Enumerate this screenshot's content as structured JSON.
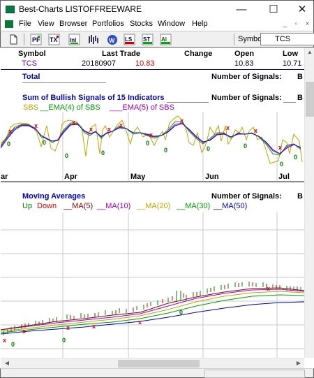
{
  "window": {
    "title": "Best-Charts  LISTOFFREEWARE",
    "minimize": "—",
    "maximize": "☐",
    "close": "✕"
  },
  "menu": {
    "items": [
      "File",
      "View",
      "Browser",
      "Portfolios",
      "Stocks",
      "Window",
      "Help"
    ]
  },
  "toolbar": {
    "symbol_label": "Symbol",
    "symbol_value": "TCS"
  },
  "quote": {
    "headers": {
      "symbol": "Symbol",
      "last_trade": "Last Trade",
      "change": "Change",
      "open": "Open",
      "low": "Low"
    },
    "row": {
      "symbol": "TCS",
      "date": "20180907",
      "price": "10.83",
      "open": "10.83",
      "low": "10.71"
    }
  },
  "total": {
    "label": "Total",
    "signals_label": "Number of Signals:",
    "signals_value": "B"
  },
  "sbs_panel": {
    "title": "Sum of Bullish Signals of 15 Indicators",
    "signals_label": "Number of Signals:",
    "signals_value": "B",
    "legend": [
      "SBS",
      "EMA(4) of SBS",
      "EMA(5) of SBS"
    ],
    "months": [
      "ar",
      "Apr",
      "May",
      "Jun",
      "Jul"
    ],
    "colors": {
      "sbs": "#c8a000",
      "ema4": "#00a000",
      "ema5": "#a000c8",
      "ema_blue": "#1a1acc"
    }
  },
  "ma_panel": {
    "title": "Moving Averages",
    "signals_label": "Number of Signals:",
    "signals_value": "B",
    "legend": [
      "Up",
      "Down",
      "MA(5)",
      "MA(10)",
      "MA(20)",
      "MA(30)",
      "MA(50)"
    ],
    "legend_colors": [
      "#008000",
      "#e00000",
      "#8b0000",
      "#a000c8",
      "#c8a000",
      "#00a000",
      "#0000c8"
    ]
  }
}
